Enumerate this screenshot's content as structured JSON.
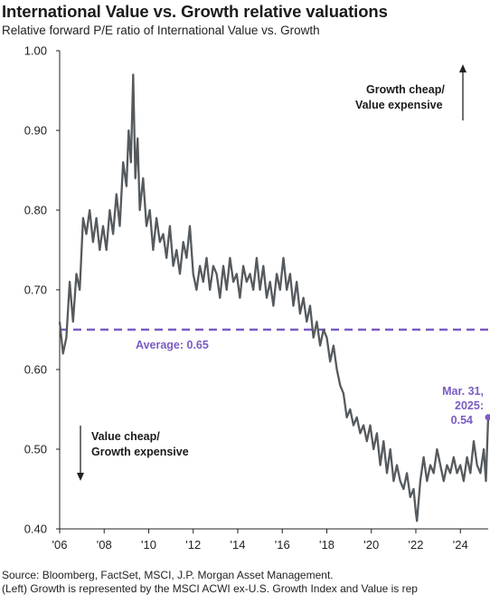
{
  "title": "International Value vs. Growth relative valuations",
  "subtitle": "Relative forward P/E ratio of International Value vs. Growth",
  "source": "Source: Bloomberg, FactSet, MSCI, J.P. Morgan Asset Management.",
  "note": "(Left) Growth is represented by the MSCI ACWI ex-U.S. Growth Index and Value is rep",
  "colors": {
    "series": "#555a5e",
    "average": "#7b5cc2",
    "axis": "#222222"
  },
  "chart_data": {
    "type": "line",
    "title": "International Value vs. Growth relative valuations",
    "subtitle": "Relative forward P/E ratio of International Value vs. Growth",
    "ylim": [
      0.4,
      1.0
    ],
    "yticks": [
      "1.00",
      "0.90",
      "0.80",
      "0.70",
      "0.60",
      "0.50",
      "0.40"
    ],
    "xlim": [
      2006,
      2025.25
    ],
    "xticks": [
      "'06",
      "'08",
      "'10",
      "'12",
      "'14",
      "'16",
      "'18",
      "'20",
      "'22",
      "'24"
    ],
    "grid": false,
    "series": [
      {
        "x": [
          2006.0,
          2006.15,
          2006.3,
          2006.45,
          2006.6,
          2006.75,
          2006.9,
          2007.05,
          2007.2,
          2007.35,
          2007.5,
          2007.65,
          2007.8,
          2007.95,
          2008.1,
          2008.25,
          2008.4,
          2008.55,
          2008.7,
          2008.85,
          2009.0,
          2009.1,
          2009.2,
          2009.3,
          2009.4,
          2009.5,
          2009.6,
          2009.75,
          2009.9,
          2010.05,
          2010.2,
          2010.35,
          2010.5,
          2010.65,
          2010.8,
          2010.95,
          2011.1,
          2011.25,
          2011.4,
          2011.55,
          2011.7,
          2011.85,
          2012.0,
          2012.15,
          2012.3,
          2012.45,
          2012.6,
          2012.75,
          2012.9,
          2013.05,
          2013.2,
          2013.35,
          2013.5,
          2013.65,
          2013.8,
          2013.95,
          2014.1,
          2014.25,
          2014.4,
          2014.55,
          2014.7,
          2014.85,
          2015.0,
          2015.15,
          2015.3,
          2015.45,
          2015.6,
          2015.75,
          2015.9,
          2016.05,
          2016.2,
          2016.35,
          2016.5,
          2016.65,
          2016.8,
          2016.95,
          2017.1,
          2017.25,
          2017.4,
          2017.55,
          2017.7,
          2017.85,
          2018.0,
          2018.15,
          2018.3,
          2018.45,
          2018.6,
          2018.75,
          2018.9,
          2019.05,
          2019.2,
          2019.35,
          2019.5,
          2019.65,
          2019.8,
          2019.95,
          2020.1,
          2020.25,
          2020.4,
          2020.55,
          2020.7,
          2020.85,
          2021.0,
          2021.15,
          2021.3,
          2021.45,
          2021.6,
          2021.75,
          2021.9,
          2022.0,
          2022.05,
          2022.2,
          2022.35,
          2022.5,
          2022.65,
          2022.8,
          2022.95,
          2023.1,
          2023.25,
          2023.4,
          2023.55,
          2023.7,
          2023.85,
          2024.0,
          2024.15,
          2024.3,
          2024.45,
          2024.6,
          2024.75,
          2024.9,
          2025.05,
          2025.15,
          2025.25
        ],
        "y": [
          0.66,
          0.62,
          0.64,
          0.71,
          0.66,
          0.72,
          0.7,
          0.79,
          0.77,
          0.8,
          0.76,
          0.79,
          0.75,
          0.78,
          0.75,
          0.8,
          0.77,
          0.82,
          0.78,
          0.86,
          0.83,
          0.9,
          0.86,
          0.97,
          0.84,
          0.89,
          0.8,
          0.84,
          0.78,
          0.8,
          0.75,
          0.79,
          0.76,
          0.77,
          0.74,
          0.78,
          0.73,
          0.75,
          0.72,
          0.76,
          0.74,
          0.78,
          0.72,
          0.7,
          0.73,
          0.71,
          0.74,
          0.7,
          0.73,
          0.72,
          0.69,
          0.73,
          0.7,
          0.74,
          0.71,
          0.72,
          0.69,
          0.73,
          0.71,
          0.72,
          0.7,
          0.74,
          0.7,
          0.73,
          0.69,
          0.71,
          0.68,
          0.72,
          0.7,
          0.74,
          0.7,
          0.72,
          0.68,
          0.71,
          0.67,
          0.69,
          0.66,
          0.68,
          0.64,
          0.66,
          0.63,
          0.65,
          0.64,
          0.61,
          0.63,
          0.6,
          0.58,
          0.57,
          0.54,
          0.55,
          0.53,
          0.54,
          0.52,
          0.53,
          0.51,
          0.53,
          0.5,
          0.52,
          0.48,
          0.51,
          0.47,
          0.5,
          0.46,
          0.48,
          0.46,
          0.45,
          0.47,
          0.44,
          0.45,
          0.42,
          0.41,
          0.46,
          0.49,
          0.46,
          0.48,
          0.47,
          0.5,
          0.48,
          0.46,
          0.48,
          0.47,
          0.49,
          0.47,
          0.48,
          0.46,
          0.49,
          0.47,
          0.51,
          0.48,
          0.47,
          0.5,
          0.46,
          0.54
        ]
      }
    ],
    "average": {
      "value": 0.65,
      "label": "Average: 0.65"
    },
    "annotations": {
      "top_line1": "Growth cheap/",
      "top_line2": "Value expensive",
      "bottom_line1": "Value cheap/",
      "bottom_line2": "Growth expensive",
      "latest_line1": "Mar. 31,",
      "latest_line2": "2025:",
      "latest_line3": "0.54",
      "latest_value": 0.54
    }
  }
}
